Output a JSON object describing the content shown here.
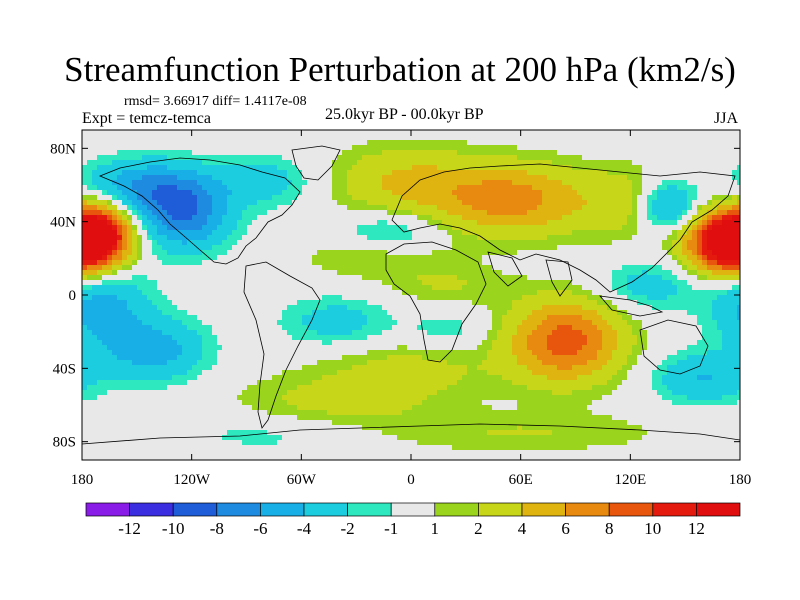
{
  "chart_data": {
    "type": "heatmap",
    "title": "Streamfunction Perturbation at 200 hPa (km2/s)",
    "stats": "rmsd= 3.66917 diff= 1.4117e-08",
    "experiment": "Expt = temcz-temca",
    "period": "25.0kyr BP - 00.0kyr BP",
    "season": "JJA",
    "xlim": [
      -180,
      180
    ],
    "ylim": [
      -90,
      90
    ],
    "x_ticks": [
      {
        "value": -180,
        "label": "180"
      },
      {
        "value": -120,
        "label": "120W"
      },
      {
        "value": -60,
        "label": "60W"
      },
      {
        "value": 0,
        "label": "0"
      },
      {
        "value": 60,
        "label": "60E"
      },
      {
        "value": 120,
        "label": "120E"
      },
      {
        "value": 180,
        "label": "180"
      }
    ],
    "y_ticks": [
      {
        "value": 80,
        "label": "80N"
      },
      {
        "value": 40,
        "label": "40N"
      },
      {
        "value": 0,
        "label": "0"
      },
      {
        "value": -40,
        "label": "40S"
      },
      {
        "value": -80,
        "label": "80S"
      }
    ],
    "colorbar": {
      "labels": [
        "-12",
        "-10",
        "-8",
        "-6",
        "-4",
        "-2",
        "-1",
        "1",
        "2",
        "4",
        "6",
        "8",
        "10",
        "12"
      ],
      "colors": [
        "#8a1ce8",
        "#3a2ee0",
        "#1f5cd8",
        "#1e8ae0",
        "#18aee6",
        "#1ccde0",
        "#2ee8c0",
        "#e8e8e8",
        "#9ad41c",
        "#c8d61a",
        "#e0b410",
        "#e88a10",
        "#e8560e",
        "#e41a0e",
        "#e00e0e"
      ]
    },
    "centers": [
      {
        "lon": -172,
        "lat": 32,
        "amp": 13,
        "slon": 14,
        "slat": 12
      },
      {
        "lon": 172,
        "lat": 28,
        "amp": 13,
        "slon": 16,
        "slat": 12
      },
      {
        "lon": 85,
        "lat": -25,
        "amp": 9,
        "slon": 22,
        "slat": 16
      },
      {
        "lon": 55,
        "lat": 52,
        "amp": 7,
        "slon": 30,
        "slat": 14
      },
      {
        "lon": -5,
        "lat": 62,
        "amp": 4,
        "slon": 28,
        "slat": 14
      },
      {
        "lon": 120,
        "lat": 50,
        "amp": 3,
        "slon": 18,
        "slat": 14
      },
      {
        "lon": 0,
        "lat": -40,
        "amp": 2.5,
        "slon": 35,
        "slat": 12
      },
      {
        "lon": -45,
        "lat": -60,
        "amp": 2.5,
        "slon": 40,
        "slat": 12
      },
      {
        "lon": 60,
        "lat": -75,
        "amp": 2,
        "slon": 60,
        "slat": 8
      },
      {
        "lon": -20,
        "lat": 20,
        "amp": 2,
        "slon": 30,
        "slat": 8
      },
      {
        "lon": 20,
        "lat": 5,
        "amp": 2,
        "slon": 25,
        "slat": 8
      },
      {
        "lon": -125,
        "lat": 45,
        "amp": -8,
        "slon": 18,
        "slat": 14
      },
      {
        "lon": -150,
        "lat": 60,
        "amp": -5,
        "slon": 22,
        "slat": 10
      },
      {
        "lon": 140,
        "lat": 48,
        "amp": -6,
        "slon": 12,
        "slat": 10
      },
      {
        "lon": -170,
        "lat": -5,
        "amp": -5,
        "slon": 18,
        "slat": 16
      },
      {
        "lon": -140,
        "lat": -30,
        "amp": -5,
        "slon": 20,
        "slat": 12
      },
      {
        "lon": -80,
        "lat": 62,
        "amp": -3,
        "slon": 20,
        "slat": 10
      },
      {
        "lon": 160,
        "lat": -45,
        "amp": -4,
        "slon": 20,
        "slat": 10
      },
      {
        "lon": -40,
        "lat": -15,
        "amp": -3,
        "slon": 22,
        "slat": 10
      },
      {
        "lon": -10,
        "lat": 35,
        "amp": -3,
        "slon": 20,
        "slat": 8
      },
      {
        "lon": 130,
        "lat": 5,
        "amp": -3,
        "slon": 20,
        "slat": 10
      },
      {
        "lon": 20,
        "lat": -20,
        "amp": -2,
        "slon": 15,
        "slat": 8
      },
      {
        "lon": -70,
        "lat": -75,
        "amp": -2,
        "slon": 40,
        "slat": 8
      }
    ]
  }
}
